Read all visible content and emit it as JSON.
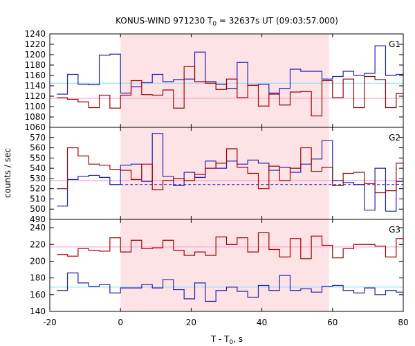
{
  "title_main": "KONUS-WIND 971230 T",
  "title_sub": "0",
  "title_rest": " = 32637s UT (09:03:57.000)",
  "xlabel_main": "T - T",
  "xlabel_sub": "0",
  "xlabel_rest": ", s",
  "ylabel": "counts / sec",
  "colors": {
    "red_series": "#a00000",
    "blue_series": "#2020b0",
    "cyan_line": "#7fdfff",
    "pink_line": "#ff99cc",
    "shade": "#fde3e6"
  },
  "chart_data": [
    {
      "type": "line",
      "panel": "G1",
      "xlim": [
        -20,
        80
      ],
      "ylim": [
        1060,
        1240
      ],
      "yticks": [
        1060,
        1080,
        1100,
        1120,
        1140,
        1160,
        1180,
        1200,
        1220,
        1240
      ],
      "xticks": [
        -20,
        0,
        20,
        40,
        60,
        80
      ],
      "shaded_interval": [
        0,
        59
      ],
      "bin_edges": [
        -18,
        -15,
        -12,
        -9,
        -6,
        -3,
        0,
        3,
        6,
        9,
        12,
        15,
        18,
        21,
        24,
        27,
        30,
        33,
        36,
        39,
        42,
        45,
        48,
        51,
        54,
        57,
        60,
        63,
        66,
        69,
        72,
        75,
        78,
        80
      ],
      "series": [
        {
          "color": "blue",
          "values": [
            1124,
            1162,
            1143,
            1142,
            1199,
            1201,
            1126,
            1138,
            1146,
            1162,
            1148,
            1152,
            1153,
            1205,
            1148,
            1143,
            1135,
            1185,
            1141,
            1143,
            1126,
            1135,
            1172,
            1168,
            1168,
            1153,
            1158,
            1168,
            1160,
            1164,
            1217,
            1160,
            1162
          ]
        },
        {
          "color": "red",
          "values": [
            1117,
            1114,
            1109,
            1098,
            1122,
            1097,
            1122,
            1150,
            1123,
            1122,
            1132,
            1097,
            1177,
            1148,
            1145,
            1133,
            1153,
            1117,
            1141,
            1101,
            1124,
            1103,
            1128,
            1129,
            1082,
            1150,
            1117,
            1153,
            1098,
            1158,
            1152,
            1098,
            1125
          ]
        }
      ],
      "reference_levels": [
        {
          "color": "cyan",
          "value": 1145
        },
        {
          "color": "pink",
          "value": 1116
        }
      ]
    },
    {
      "type": "line",
      "panel": "G2",
      "xlim": [
        -20,
        80
      ],
      "ylim": [
        490,
        580
      ],
      "yticks": [
        490,
        500,
        510,
        520,
        530,
        540,
        550,
        560,
        570
      ],
      "shaded_interval": [
        0,
        59
      ],
      "bin_edges": [
        -18,
        -15,
        -12,
        -9,
        -6,
        -3,
        0,
        3,
        6,
        9,
        12,
        15,
        18,
        21,
        24,
        27,
        30,
        33,
        36,
        39,
        42,
        45,
        48,
        51,
        54,
        57,
        60,
        63,
        66,
        69,
        72,
        75,
        78,
        80
      ],
      "series": [
        {
          "color": "blue",
          "values": [
            503,
            529,
            532,
            533,
            531,
            524,
            543,
            544,
            527,
            574,
            532,
            523,
            536,
            531,
            547,
            540,
            547,
            544,
            548,
            545,
            538,
            541,
            536,
            544,
            549,
            567,
            528,
            526,
            524,
            499,
            540,
            498,
            527
          ]
        },
        {
          "color": "red",
          "values": [
            520,
            560,
            552,
            544,
            543,
            539,
            538,
            529,
            544,
            519,
            528,
            530,
            528,
            534,
            540,
            545,
            559,
            541,
            535,
            520,
            542,
            528,
            540,
            560,
            537,
            541,
            523,
            535,
            536,
            525,
            516,
            518,
            545
          ]
        }
      ],
      "reference_levels": [
        {
          "color": "cyan",
          "value": 528
        },
        {
          "color": "blue-dashed",
          "value": 524
        },
        {
          "color": "pink",
          "value": 528
        }
      ]
    },
    {
      "type": "line",
      "panel": "G3",
      "xlim": [
        -20,
        80
      ],
      "ylim": [
        140,
        250
      ],
      "yticks": [
        140,
        160,
        180,
        200,
        220,
        240
      ],
      "shaded_interval": [
        0,
        59
      ],
      "bin_edges": [
        -18,
        -15,
        -12,
        -9,
        -6,
        -3,
        0,
        3,
        6,
        9,
        12,
        15,
        18,
        21,
        24,
        27,
        30,
        33,
        36,
        39,
        42,
        45,
        48,
        51,
        54,
        57,
        60,
        63,
        66,
        69,
        72,
        75,
        78,
        80
      ],
      "series": [
        {
          "color": "red",
          "values": [
            208,
            206,
            215,
            213,
            212,
            228,
            211,
            225,
            215,
            216,
            225,
            213,
            207,
            211,
            207,
            229,
            220,
            228,
            211,
            234,
            214,
            205,
            227,
            203,
            230,
            219,
            204,
            215,
            220,
            220,
            218,
            205,
            227
          ]
        },
        {
          "color": "blue",
          "values": [
            165,
            186,
            174,
            170,
            172,
            162,
            168,
            168,
            172,
            168,
            178,
            166,
            155,
            174,
            152,
            165,
            169,
            164,
            157,
            171,
            165,
            183,
            165,
            167,
            163,
            170,
            171,
            165,
            162,
            168,
            160,
            165,
            163
          ]
        }
      ],
      "reference_levels": [
        {
          "color": "cyan",
          "value": 169
        },
        {
          "color": "pink",
          "value": 217
        }
      ]
    }
  ],
  "panel_labels": [
    "G1",
    "G2",
    "G3"
  ],
  "xtick_labels": [
    "-20",
    "0",
    "20",
    "40",
    "60",
    "80"
  ],
  "panel_ytick_labels": [
    [
      "1060",
      "1080",
      "1100",
      "1120",
      "1140",
      "1160",
      "1180",
      "1200",
      "1220",
      "1240"
    ],
    [
      "490",
      "500",
      "510",
      "520",
      "530",
      "540",
      "550",
      "560",
      "570"
    ],
    [
      "140",
      "160",
      "180",
      "200",
      "220",
      "240"
    ]
  ]
}
